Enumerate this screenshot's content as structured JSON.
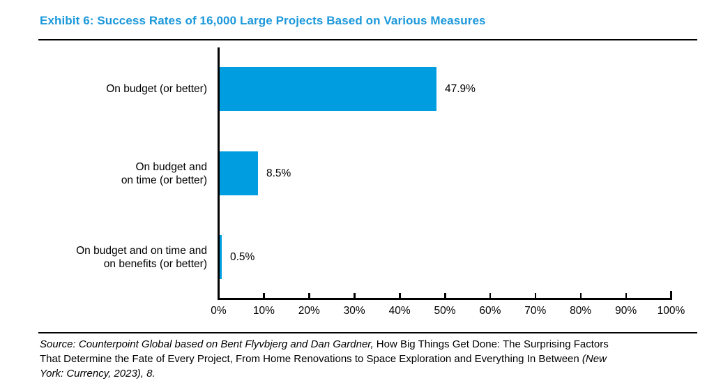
{
  "exhibit": {
    "title": "Exhibit 6: Success Rates of 16,000 Large Projects Based on Various Measures"
  },
  "colors": {
    "title_blue": "#1B98DB",
    "bar_blue": "#009EE0",
    "axis_black": "#000000"
  },
  "chart_data": {
    "type": "bar",
    "orientation": "horizontal",
    "title": "Exhibit 6: Success Rates of 16,000 Large Projects Based on Various Measures",
    "categories": [
      [
        "On budget (or better)"
      ],
      [
        "On budget and",
        "on time (or better)"
      ],
      [
        "On budget and on time and",
        "on benefits (or better)"
      ]
    ],
    "values": [
      47.9,
      8.5,
      0.5
    ],
    "value_labels": [
      "47.9%",
      "8.5%",
      "0.5%"
    ],
    "xlim": [
      0,
      100
    ],
    "x_tick_labels": [
      "0%",
      "10%",
      "20%",
      "30%",
      "40%",
      "50%",
      "60%",
      "70%",
      "80%",
      "90%",
      "100%"
    ],
    "xlabel": "",
    "ylabel": "",
    "grid": false,
    "legend": "none",
    "bar_color": "#009EE0"
  },
  "source": {
    "lines": [
      [
        {
          "text": "Source: Counterpoint Global based on Bent Flyvbjerg and Dan Gardner,",
          "italic": true
        },
        {
          "text": " How Big Things Get Done: The Surprising Factors",
          "italic": false
        }
      ],
      [
        {
          "text": "That Determine the Fate of Every Project, From Home Renovations to Space Exploration and Everything In Between ",
          "italic": false
        },
        {
          "text": "(New",
          "italic": true
        }
      ],
      [
        {
          "text": "York: Currency, 2023), 8.",
          "italic": true
        }
      ]
    ]
  }
}
